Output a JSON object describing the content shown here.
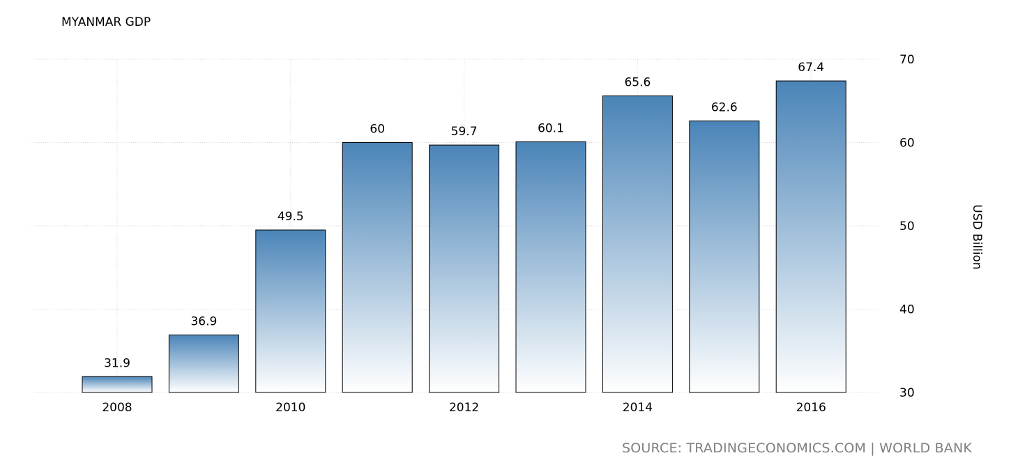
{
  "chart_data": {
    "type": "bar",
    "title": "MYANMAR GDP",
    "ylabel": "USD Billion",
    "xlabel": "",
    "categories": [
      "2008",
      "2009",
      "2010",
      "2011",
      "2012",
      "2013",
      "2014",
      "2015",
      "2016"
    ],
    "values": [
      31.9,
      36.9,
      49.5,
      60,
      59.7,
      60.1,
      65.6,
      62.6,
      67.4
    ],
    "value_labels": [
      "31.9",
      "36.9",
      "49.5",
      "60",
      "59.7",
      "60.1",
      "65.6",
      "62.6",
      "67.4"
    ],
    "x_tick_labels": [
      "2008",
      "2010",
      "2012",
      "2014",
      "2016"
    ],
    "y_ticks": [
      30,
      40,
      50,
      60,
      70
    ],
    "ylim": [
      30,
      70
    ],
    "y_axis_side": "right",
    "grid": true,
    "legend": "none",
    "bar_color_top": "#4a84b8",
    "bar_color_bottom": "#ffffff",
    "bar_border_color": "#000000"
  },
  "source": "SOURCE: TRADINGECONOMICS.COM | WORLD BANK"
}
